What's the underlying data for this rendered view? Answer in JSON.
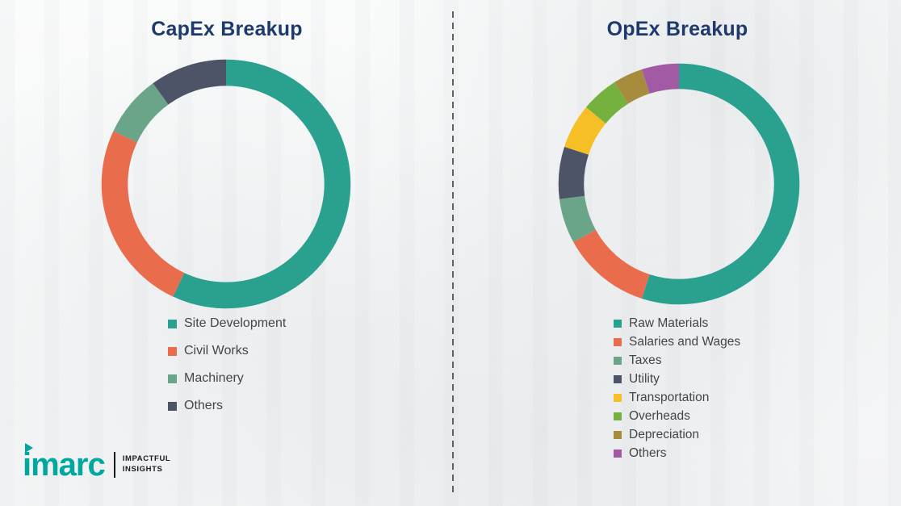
{
  "chart_data": [
    {
      "type": "pie",
      "variant": "donut",
      "title": "CapEx Breakup",
      "labels": [
        "Site Development",
        "Civil Works",
        "Machinery",
        "Others"
      ],
      "values": [
        57,
        25,
        8,
        10
      ],
      "colors": [
        "#2aa18f",
        "#e96c4c",
        "#6aa489",
        "#4d5467"
      ],
      "legend_position": "bottom",
      "title_color": "#1e3a6d"
    },
    {
      "type": "pie",
      "variant": "donut",
      "title": "OpEx Breakup",
      "labels": [
        "Raw Materials",
        "Salaries and Wages",
        "Taxes",
        "Utility",
        "Transportation",
        "Overheads",
        "Depreciation",
        "Others"
      ],
      "values": [
        55,
        12,
        6,
        7,
        6,
        5,
        4,
        5
      ],
      "colors": [
        "#2aa18f",
        "#e96c4c",
        "#6aa489",
        "#4d5467",
        "#f5bf25",
        "#74b13e",
        "#a78c3e",
        "#a35aa5"
      ],
      "legend_position": "bottom",
      "title_color": "#1e3a6d"
    }
  ],
  "branding": {
    "logo_text": "imarc",
    "tagline_line1": "IMPACTFUL",
    "tagline_line2": "INSIGHTS",
    "logo_color": "#00a79f"
  }
}
